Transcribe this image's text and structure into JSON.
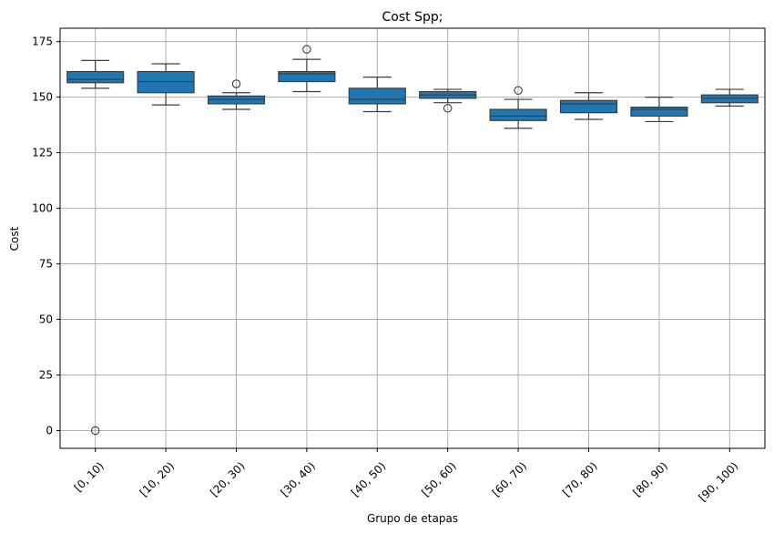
{
  "chart_data": {
    "type": "box",
    "title": "Cost Spp;",
    "xlabel": "Grupo de etapas",
    "ylabel": "Cost",
    "ylim": [
      -8,
      181
    ],
    "yticks": [
      0,
      25,
      50,
      75,
      100,
      125,
      150,
      175
    ],
    "grid": true,
    "box_color": "#1f77b4",
    "categories": [
      "[0, 10)",
      "[10, 20)",
      "[20, 30)",
      "[30, 40)",
      "[40, 50)",
      "[50, 60)",
      "[60, 70)",
      "[70, 80)",
      "[80, 90)",
      "[90, 100)"
    ],
    "boxes": [
      {
        "whisker_low": 154,
        "q1": 156.5,
        "median": 158,
        "q3": 161.5,
        "whisker_high": 166.5,
        "outliers": [
          0
        ]
      },
      {
        "whisker_low": 146.5,
        "q1": 152,
        "median": 157,
        "q3": 161.5,
        "whisker_high": 165,
        "outliers": []
      },
      {
        "whisker_low": 144.5,
        "q1": 147,
        "median": 149,
        "q3": 150.5,
        "whisker_high": 152,
        "outliers": [
          156
        ]
      },
      {
        "whisker_low": 152.5,
        "q1": 157,
        "median": 160.5,
        "q3": 161.5,
        "whisker_high": 167,
        "outliers": [
          171.5
        ]
      },
      {
        "whisker_low": 143.5,
        "q1": 147,
        "median": 149,
        "q3": 154,
        "whisker_high": 159,
        "outliers": []
      },
      {
        "whisker_low": 147.5,
        "q1": 149.5,
        "median": 151,
        "q3": 152.5,
        "whisker_high": 153.5,
        "outliers": [
          145
        ]
      },
      {
        "whisker_low": 136,
        "q1": 139.5,
        "median": 141.5,
        "q3": 144.5,
        "whisker_high": 149,
        "outliers": [
          153
        ]
      },
      {
        "whisker_low": 140,
        "q1": 143,
        "median": 147,
        "q3": 148.5,
        "whisker_high": 152,
        "outliers": []
      },
      {
        "whisker_low": 139,
        "q1": 141.5,
        "median": 144.5,
        "q3": 145.5,
        "whisker_high": 150,
        "outliers": []
      },
      {
        "whisker_low": 146,
        "q1": 147.5,
        "median": 149.5,
        "q3": 151,
        "whisker_high": 153.5,
        "outliers": []
      }
    ]
  }
}
